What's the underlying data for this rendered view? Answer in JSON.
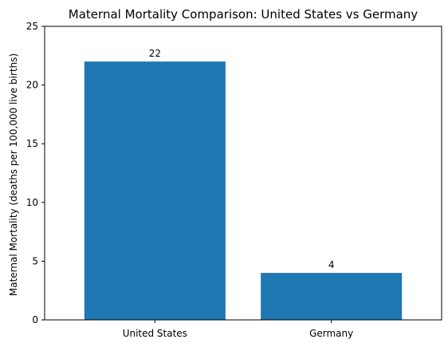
{
  "chart_data": {
    "type": "bar",
    "title": "Maternal Mortality Comparison: United States vs Germany",
    "xlabel": "",
    "ylabel": "Maternal Mortality (deaths per 100,000 live births)",
    "categories": [
      "United States",
      "Germany"
    ],
    "values": [
      22,
      4
    ],
    "ylim": [
      0,
      25
    ],
    "yticks": [
      0,
      5,
      10,
      15,
      20,
      25
    ],
    "bar_color": "#1f77b4",
    "grid": false,
    "legend": "none"
  }
}
